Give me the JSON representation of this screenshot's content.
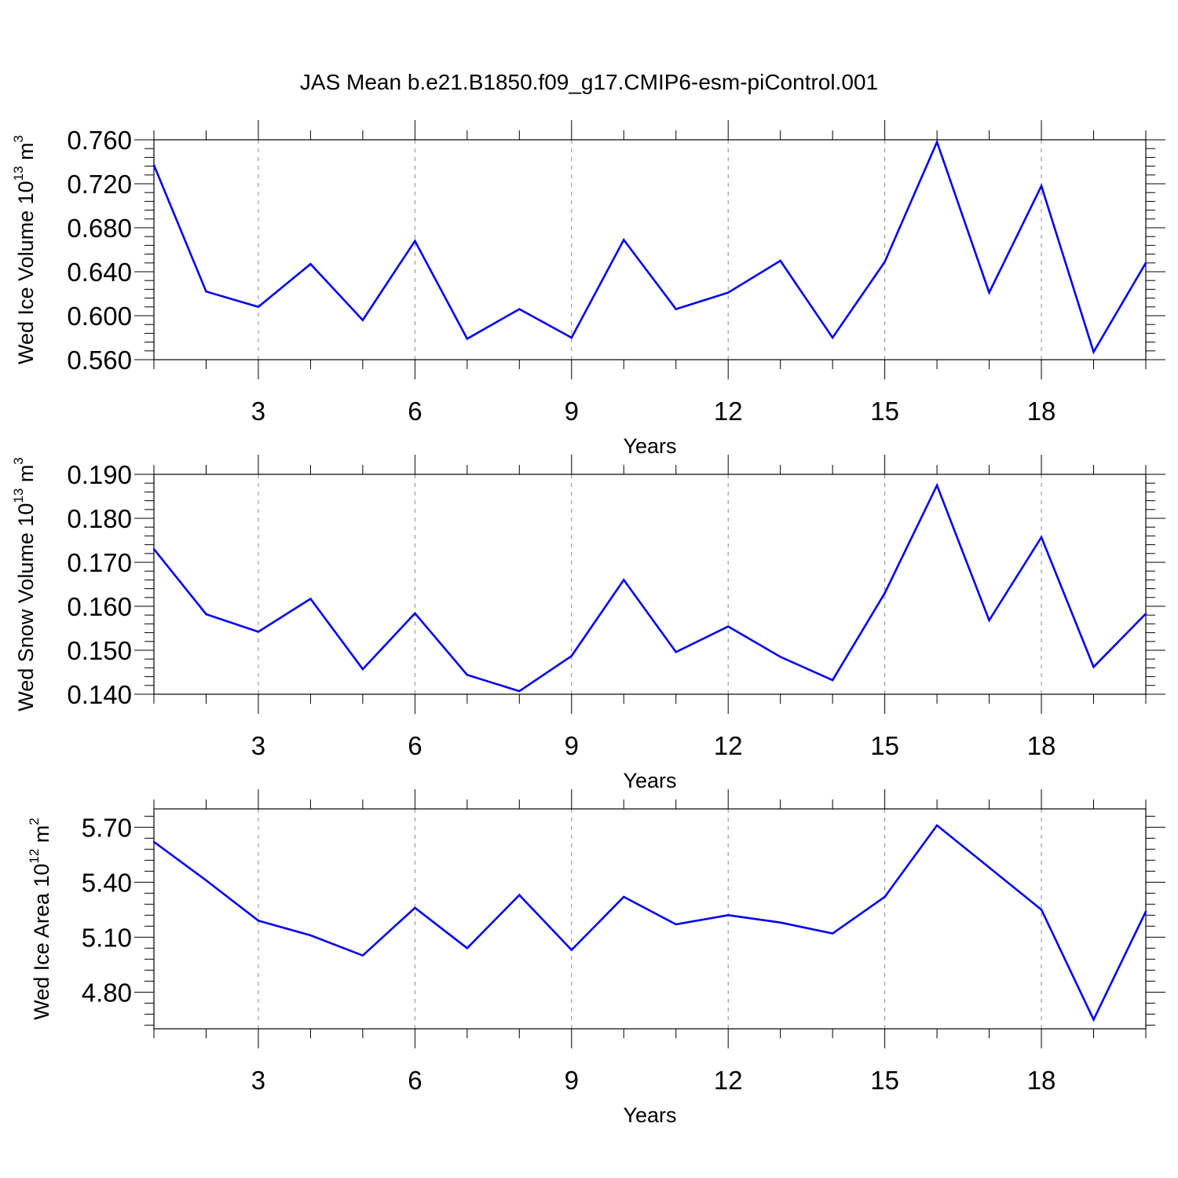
{
  "chart_data": [
    {
      "type": "line",
      "title": "JAS Mean b.e21.B1850.f09_g17.CMIP6-esm-piControl.001",
      "xlabel": "Years",
      "ylabel": {
        "base": "Wed Ice Volume 10",
        "exp1": "13",
        "mid": " m",
        "exp2": "3"
      },
      "xlim": [
        1,
        20
      ],
      "ylim": [
        0.56,
        0.76
      ],
      "xticks": [
        3,
        6,
        9,
        12,
        15,
        18
      ],
      "xtick_labels": [
        "3",
        "6",
        "9",
        "12",
        "15",
        "18"
      ],
      "yticks": [
        0.56,
        0.6,
        0.64,
        0.68,
        0.72,
        0.76
      ],
      "ytick_labels": [
        "0.560",
        "0.600",
        "0.640",
        "0.680",
        "0.720",
        "0.760"
      ],
      "grid": "vertical-dashed",
      "color": "#0000ee",
      "x": [
        1,
        2,
        3,
        4,
        5,
        6,
        7,
        8,
        9,
        10,
        11,
        12,
        13,
        14,
        15,
        16,
        17,
        18,
        19,
        20
      ],
      "values": [
        0.737,
        0.622,
        0.608,
        0.647,
        0.596,
        0.668,
        0.579,
        0.606,
        0.58,
        0.669,
        0.606,
        0.621,
        0.65,
        0.58,
        0.649,
        0.758,
        0.621,
        0.718,
        0.567,
        0.648
      ]
    },
    {
      "type": "line",
      "xlabel": "Years",
      "ylabel": {
        "base": "Wed Snow Volume 10",
        "exp1": "13",
        "mid": " m",
        "exp2": "3"
      },
      "xlim": [
        1,
        20
      ],
      "ylim": [
        0.14,
        0.19
      ],
      "xticks": [
        3,
        6,
        9,
        12,
        15,
        18
      ],
      "xtick_labels": [
        "3",
        "6",
        "9",
        "12",
        "15",
        "18"
      ],
      "yticks": [
        0.14,
        0.15,
        0.16,
        0.17,
        0.18,
        0.19
      ],
      "ytick_labels": [
        "0.140",
        "0.150",
        "0.160",
        "0.170",
        "0.180",
        "0.190"
      ],
      "grid": "vertical-dashed",
      "color": "#0000ee",
      "x": [
        1,
        2,
        3,
        4,
        5,
        6,
        7,
        8,
        9,
        10,
        11,
        12,
        13,
        14,
        15,
        16,
        17,
        18,
        19,
        20
      ],
      "values": [
        0.173,
        0.1582,
        0.1542,
        0.1617,
        0.1457,
        0.1584,
        0.1444,
        0.1407,
        0.1487,
        0.166,
        0.1496,
        0.1554,
        0.1485,
        0.1432,
        0.163,
        0.1875,
        0.1568,
        0.1757,
        0.1462,
        0.1583
      ]
    },
    {
      "type": "line",
      "xlabel": "Years",
      "ylabel": {
        "base": "Wed Ice Area 10",
        "exp1": "12",
        "mid": " m",
        "exp2": "2"
      },
      "xlim": [
        1,
        20
      ],
      "ylim": [
        4.6,
        5.8
      ],
      "xticks": [
        3,
        6,
        9,
        12,
        15,
        18
      ],
      "xtick_labels": [
        "3",
        "6",
        "9",
        "12",
        "15",
        "18"
      ],
      "yticks": [
        4.8,
        5.1,
        5.4,
        5.7
      ],
      "ytick_labels": [
        "4.80",
        "5.10",
        "5.40",
        "5.70"
      ],
      "grid": "vertical-dashed",
      "color": "#0000ee",
      "x": [
        1,
        2,
        3,
        4,
        5,
        6,
        7,
        8,
        9,
        10,
        11,
        12,
        13,
        14,
        15,
        16,
        17,
        18,
        19,
        20
      ],
      "values": [
        5.62,
        5.41,
        5.19,
        5.11,
        5.0,
        5.26,
        5.04,
        5.33,
        5.03,
        5.32,
        5.17,
        5.22,
        5.18,
        5.12,
        5.32,
        5.71,
        5.48,
        5.25,
        4.65,
        5.24
      ]
    }
  ]
}
